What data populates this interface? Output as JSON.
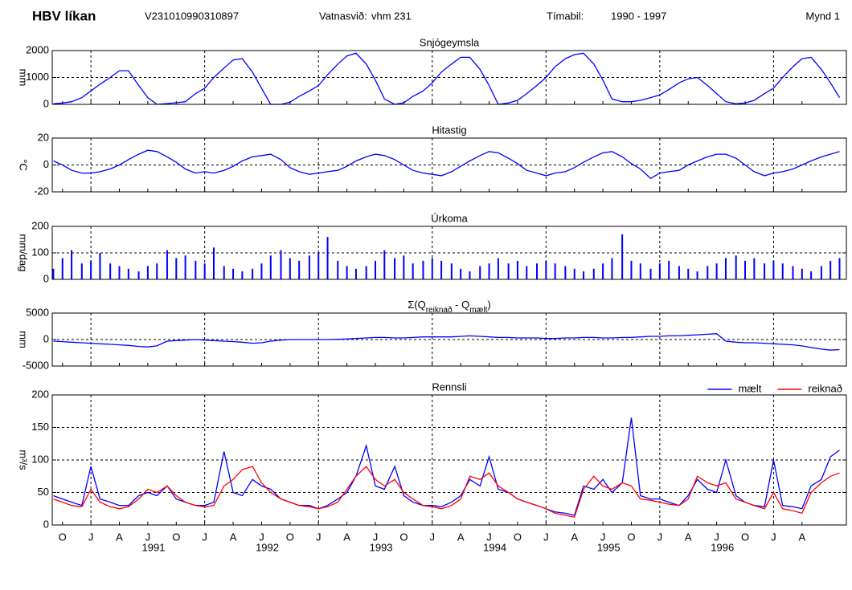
{
  "header": {
    "title": "HBV líkan",
    "code": "V231010990310897",
    "basin_label": "Vatnasvið:",
    "basin": "vhm 231",
    "period_label": "Tímabil:",
    "period": "1990 - 1997",
    "figure": "Mynd 1"
  },
  "x_axis": {
    "xlim": [
      1990.66,
      1997.64
    ],
    "x": [
      1990.67,
      1990.75,
      1990.83,
      1990.92,
      1991.0,
      1991.08,
      1991.17,
      1991.25,
      1991.33,
      1991.42,
      1991.5,
      1991.58,
      1991.67,
      1991.75,
      1991.83,
      1991.92,
      1992.0,
      1992.08,
      1992.17,
      1992.25,
      1992.33,
      1992.42,
      1992.5,
      1992.58,
      1992.67,
      1992.75,
      1992.83,
      1992.92,
      1993.0,
      1993.08,
      1993.17,
      1993.25,
      1993.33,
      1993.42,
      1993.5,
      1993.58,
      1993.67,
      1993.75,
      1993.83,
      1993.92,
      1994.0,
      1994.08,
      1994.17,
      1994.25,
      1994.33,
      1994.42,
      1994.5,
      1994.58,
      1994.67,
      1994.75,
      1994.83,
      1994.92,
      1995.0,
      1995.08,
      1995.17,
      1995.25,
      1995.33,
      1995.42,
      1995.5,
      1995.58,
      1995.67,
      1995.75,
      1995.83,
      1995.92,
      1996.0,
      1996.08,
      1996.17,
      1996.25,
      1996.33,
      1996.42,
      1996.5,
      1996.58,
      1996.67,
      1996.75,
      1996.83,
      1996.92,
      1997.0,
      1997.08,
      1997.17,
      1997.25,
      1997.33,
      1997.42,
      1997.5,
      1997.58
    ],
    "xticks": [
      {
        "value": 1990.75,
        "label": "O"
      },
      {
        "value": 1991,
        "label": "J"
      },
      {
        "value": 1991.25,
        "label": "A"
      },
      {
        "value": 1991.5,
        "label": "J"
      },
      {
        "value": 1991.75,
        "label": "O"
      },
      {
        "value": 1992,
        "label": "J"
      },
      {
        "value": 1992.25,
        "label": "A"
      },
      {
        "value": 1992.5,
        "label": "J"
      },
      {
        "value": 1992.75,
        "label": "O"
      },
      {
        "value": 1993,
        "label": "J"
      },
      {
        "value": 1993.25,
        "label": "A"
      },
      {
        "value": 1993.5,
        "label": "J"
      },
      {
        "value": 1993.75,
        "label": "O"
      },
      {
        "value": 1994,
        "label": "J"
      },
      {
        "value": 1994.25,
        "label": "A"
      },
      {
        "value": 1994.5,
        "label": "J"
      },
      {
        "value": 1994.75,
        "label": "O"
      },
      {
        "value": 1995,
        "label": "J"
      },
      {
        "value": 1995.25,
        "label": "A"
      },
      {
        "value": 1995.5,
        "label": "J"
      },
      {
        "value": 1995.75,
        "label": "O"
      },
      {
        "value": 1996,
        "label": "J"
      },
      {
        "value": 1996.25,
        "label": "A"
      },
      {
        "value": 1996.5,
        "label": "J"
      },
      {
        "value": 1996.75,
        "label": "O"
      },
      {
        "value": 1997,
        "label": "J"
      },
      {
        "value": 1997.25,
        "label": "A"
      }
    ],
    "year_labels": [
      {
        "value": 1991.55,
        "label": "1991"
      },
      {
        "value": 1992.55,
        "label": "1992"
      },
      {
        "value": 1993.55,
        "label": "1993"
      },
      {
        "value": 1994.55,
        "label": "1994"
      },
      {
        "value": 1995.55,
        "label": "1995"
      },
      {
        "value": 1996.55,
        "label": "1996"
      }
    ]
  },
  "chart_data": [
    {
      "type": "line",
      "title": "Snjógeymsla",
      "ylabel": "mm",
      "ylim": [
        0,
        2000
      ],
      "yticks": [
        0,
        1000,
        2000
      ],
      "grid": true,
      "series": [
        {
          "name": "Snjógeymsla",
          "color": "#0000ff",
          "values": [
            20,
            50,
            100,
            250,
            500,
            750,
            1000,
            1250,
            1250,
            700,
            250,
            0,
            30,
            60,
            100,
            400,
            600,
            1000,
            1350,
            1650,
            1700,
            1200,
            600,
            0,
            0,
            80,
            300,
            500,
            700,
            1100,
            1500,
            1800,
            1900,
            1500,
            900,
            200,
            0,
            60,
            300,
            500,
            800,
            1200,
            1500,
            1750,
            1750,
            1300,
            700,
            0,
            50,
            150,
            400,
            700,
            1000,
            1400,
            1700,
            1850,
            1900,
            1500,
            900,
            200,
            100,
            100,
            150,
            250,
            350,
            550,
            800,
            950,
            1000,
            700,
            400,
            100,
            20,
            50,
            150,
            400,
            600,
            1000,
            1400,
            1700,
            1750,
            1300,
            800,
            250
          ]
        }
      ]
    },
    {
      "type": "line",
      "title": "Hitastig",
      "ylabel": "°C",
      "ylim": [
        -20,
        20
      ],
      "yticks": [
        -20,
        0,
        20
      ],
      "grid": true,
      "series": [
        {
          "name": "Hitastig",
          "color": "#0000ff",
          "values": [
            3,
            0,
            -4,
            -6,
            -6,
            -5,
            -3,
            0,
            4,
            8,
            11,
            10,
            6,
            2,
            -3,
            -6,
            -5,
            -6,
            -4,
            -1,
            3,
            6,
            7,
            8,
            4,
            -2,
            -5,
            -7,
            -6,
            -5,
            -4,
            -1,
            3,
            6,
            8,
            7,
            4,
            0,
            -4,
            -6,
            -7,
            -8,
            -5,
            -1,
            3,
            7,
            10,
            9,
            5,
            1,
            -4,
            -6,
            -8,
            -6,
            -5,
            -2,
            2,
            6,
            9,
            10,
            6,
            1,
            -3,
            -10,
            -6,
            -5,
            -4,
            0,
            3,
            6,
            8,
            8,
            5,
            0,
            -5,
            -8,
            -6,
            -5,
            -3,
            0,
            3,
            6,
            8,
            10
          ]
        }
      ]
    },
    {
      "type": "bar",
      "title": "Úrkoma",
      "ylabel": "mm/dag",
      "ylim": [
        0,
        200
      ],
      "yticks": [
        0,
        100,
        200
      ],
      "grid": true,
      "series": [
        {
          "name": "Úrkoma",
          "color": "#0000ff",
          "values": [
            40,
            80,
            110,
            60,
            70,
            100,
            60,
            50,
            40,
            30,
            50,
            60,
            110,
            80,
            90,
            70,
            60,
            120,
            50,
            40,
            30,
            40,
            60,
            90,
            110,
            80,
            70,
            90,
            100,
            160,
            70,
            50,
            40,
            50,
            70,
            110,
            80,
            90,
            60,
            70,
            80,
            70,
            60,
            40,
            30,
            50,
            60,
            80,
            60,
            70,
            50,
            60,
            70,
            60,
            50,
            40,
            30,
            40,
            60,
            80,
            170,
            70,
            60,
            40,
            60,
            70,
            50,
            40,
            30,
            50,
            60,
            80,
            90,
            70,
            80,
            60,
            70,
            60,
            50,
            40,
            30,
            50,
            70,
            80
          ]
        }
      ]
    },
    {
      "type": "line",
      "title_parts": [
        "Σ(Q",
        "reiknað",
        " - Q",
        "mælt",
        ")"
      ],
      "ylabel": "mm",
      "ylim": [
        -5000,
        5000
      ],
      "yticks": [
        -5000,
        0,
        5000
      ],
      "grid": true,
      "series": [
        {
          "name": "Σ",
          "color": "#0000ff",
          "values": [
            -300,
            -400,
            -500,
            -600,
            -700,
            -800,
            -900,
            -1000,
            -1100,
            -1300,
            -1400,
            -1200,
            -300,
            -200,
            -100,
            0,
            -100,
            -200,
            -300,
            -400,
            -500,
            -700,
            -600,
            -300,
            -100,
            0,
            0,
            0,
            0,
            0,
            50,
            100,
            200,
            300,
            400,
            400,
            300,
            300,
            400,
            500,
            500,
            500,
            500,
            600,
            700,
            600,
            500,
            400,
            400,
            300,
            300,
            300,
            200,
            200,
            300,
            300,
            400,
            400,
            300,
            300,
            400,
            400,
            500,
            600,
            600,
            700,
            700,
            800,
            900,
            1000,
            1100,
            -300,
            -500,
            -600,
            -600,
            -700,
            -800,
            -900,
            -1000,
            -1200,
            -1500,
            -1800,
            -2000,
            -1900
          ]
        }
      ]
    },
    {
      "type": "line",
      "title": "Rennsli",
      "ylabel": "m³/s",
      "ylim": [
        0,
        200
      ],
      "yticks": [
        0,
        50,
        100,
        150,
        200
      ],
      "grid": true,
      "legend": "top-right",
      "series": [
        {
          "name": "mælt",
          "color": "#0000ff",
          "values": [
            45,
            40,
            35,
            30,
            90,
            40,
            35,
            30,
            30,
            45,
            50,
            45,
            60,
            40,
            35,
            30,
            30,
            35,
            113,
            50,
            45,
            70,
            60,
            55,
            40,
            35,
            30,
            30,
            25,
            30,
            40,
            50,
            75,
            122,
            60,
            55,
            90,
            45,
            35,
            30,
            30,
            28,
            35,
            45,
            70,
            60,
            105,
            55,
            50,
            40,
            35,
            30,
            25,
            20,
            18,
            15,
            60,
            55,
            70,
            50,
            65,
            165,
            45,
            40,
            40,
            35,
            30,
            45,
            70,
            55,
            50,
            100,
            45,
            35,
            30,
            28,
            100,
            30,
            28,
            25,
            60,
            70,
            105,
            115
          ]
        },
        {
          "name": "reiknað",
          "color": "#ff0000",
          "values": [
            40,
            35,
            30,
            28,
            55,
            35,
            28,
            25,
            28,
            40,
            55,
            50,
            60,
            45,
            35,
            30,
            28,
            30,
            60,
            70,
            85,
            90,
            65,
            50,
            40,
            35,
            30,
            28,
            25,
            28,
            35,
            55,
            75,
            90,
            70,
            60,
            70,
            50,
            40,
            30,
            28,
            25,
            30,
            40,
            75,
            70,
            80,
            60,
            50,
            40,
            35,
            30,
            25,
            18,
            15,
            12,
            55,
            75,
            60,
            55,
            65,
            60,
            40,
            38,
            35,
            32,
            30,
            40,
            75,
            65,
            60,
            65,
            40,
            35,
            30,
            25,
            50,
            25,
            22,
            18,
            50,
            65,
            75,
            80
          ]
        }
      ]
    }
  ]
}
